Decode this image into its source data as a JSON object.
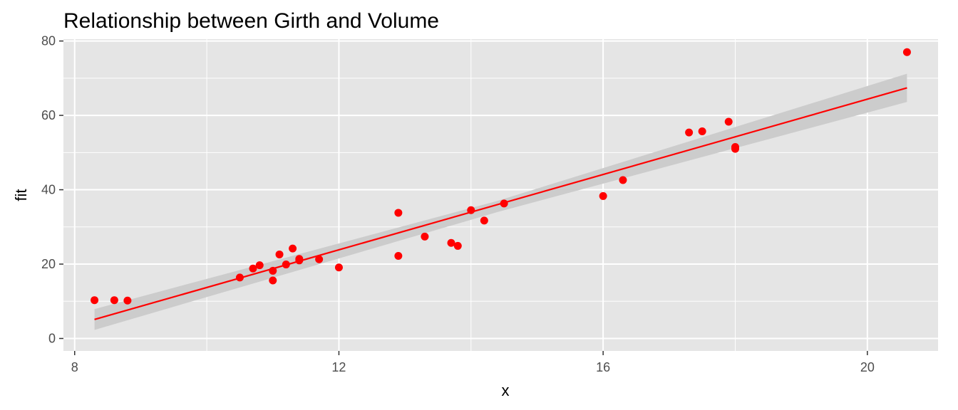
{
  "chart_data": {
    "type": "scatter",
    "title": "Relationship between Girth and Volume",
    "xlabel": "x",
    "ylabel": "fit",
    "xlim": [
      7.83,
      21.07
    ],
    "ylim": [
      -3.35,
      80.5
    ],
    "x_ticks": [
      8,
      12,
      16,
      20
    ],
    "x_tick_labels": [
      "8",
      "12",
      "16",
      "20"
    ],
    "y_ticks": [
      0,
      20,
      40,
      60,
      80
    ],
    "y_tick_labels": [
      "0",
      "20",
      "40",
      "60",
      "80"
    ],
    "grid": true,
    "legend": "none",
    "points": [
      {
        "x": 8.3,
        "y": 10.3
      },
      {
        "x": 8.6,
        "y": 10.3
      },
      {
        "x": 8.8,
        "y": 10.2
      },
      {
        "x": 10.5,
        "y": 16.4
      },
      {
        "x": 10.7,
        "y": 18.8
      },
      {
        "x": 10.8,
        "y": 19.7
      },
      {
        "x": 11.0,
        "y": 15.6
      },
      {
        "x": 11.0,
        "y": 18.2
      },
      {
        "x": 11.1,
        "y": 22.6
      },
      {
        "x": 11.2,
        "y": 19.9
      },
      {
        "x": 11.3,
        "y": 24.2
      },
      {
        "x": 11.4,
        "y": 21.0
      },
      {
        "x": 11.4,
        "y": 21.4
      },
      {
        "x": 11.7,
        "y": 21.3
      },
      {
        "x": 12.0,
        "y": 19.1
      },
      {
        "x": 12.9,
        "y": 22.2
      },
      {
        "x": 12.9,
        "y": 33.8
      },
      {
        "x": 13.3,
        "y": 27.4
      },
      {
        "x": 13.7,
        "y": 25.7
      },
      {
        "x": 13.8,
        "y": 24.9
      },
      {
        "x": 14.0,
        "y": 34.5
      },
      {
        "x": 14.2,
        "y": 31.7
      },
      {
        "x": 14.5,
        "y": 36.3
      },
      {
        "x": 16.0,
        "y": 38.3
      },
      {
        "x": 16.3,
        "y": 42.6
      },
      {
        "x": 17.3,
        "y": 55.4
      },
      {
        "x": 17.5,
        "y": 55.7
      },
      {
        "x": 17.9,
        "y": 58.3
      },
      {
        "x": 18.0,
        "y": 51.5
      },
      {
        "x": 18.0,
        "y": 51.0
      },
      {
        "x": 20.6,
        "y": 77.0
      }
    ],
    "fit_line": {
      "x": [
        8.3,
        20.6
      ],
      "y": [
        5.1,
        67.4
      ]
    },
    "confidence_band": {
      "x": [
        8.3,
        14.4,
        20.6
      ],
      "lower": [
        2.3,
        34.0,
        63.6
      ],
      "upper": [
        7.9,
        37.0,
        71.2
      ]
    },
    "colors": {
      "panel_background": "#e5e5e5",
      "grid": "#ffffff",
      "points": "#ff0000",
      "fit_line": "#ff0000",
      "band": "#cccccc",
      "tick_label": "#4d4d4d",
      "tick_mark": "#333333"
    }
  }
}
